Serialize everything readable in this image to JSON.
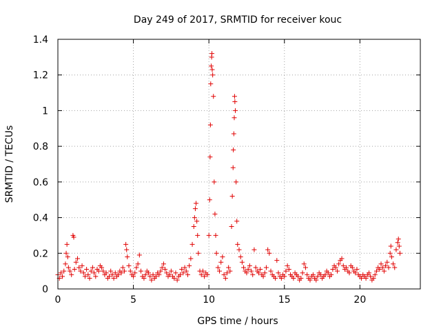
{
  "chart_data": {
    "type": "scatter",
    "title": "Day 249 of 2017, SRMTID for receiver kouc",
    "xlabel": "GPS time / hours",
    "ylabel": "SRMTID / TECUs",
    "xlim": [
      0,
      24
    ],
    "ylim": [
      0,
      1.4
    ],
    "x_ticks": [
      0,
      5,
      10,
      15,
      20
    ],
    "x_tick_labels": [
      "0",
      "5",
      "10",
      "15",
      "20"
    ],
    "y_ticks": [
      0,
      0.2,
      0.4,
      0.6,
      0.8,
      1.0,
      1.2,
      1.4
    ],
    "y_tick_labels": [
      "0",
      "0.2",
      "0.4",
      "0.6",
      "0.8",
      "1",
      "1.2",
      "1.4"
    ],
    "grid": true,
    "marker": "+",
    "color": "#e00000",
    "series": [
      {
        "name": "SRMTID",
        "points": [
          [
            0.0,
            0.08
          ],
          [
            0.1,
            0.06
          ],
          [
            0.2,
            0.09
          ],
          [
            0.3,
            0.07
          ],
          [
            0.4,
            0.1
          ],
          [
            0.5,
            0.14
          ],
          [
            0.55,
            0.2
          ],
          [
            0.6,
            0.25
          ],
          [
            0.65,
            0.18
          ],
          [
            0.7,
            0.12
          ],
          [
            0.8,
            0.1
          ],
          [
            0.9,
            0.08
          ],
          [
            1.0,
            0.3
          ],
          [
            1.05,
            0.29
          ],
          [
            1.1,
            0.11
          ],
          [
            1.2,
            0.15
          ],
          [
            1.3,
            0.17
          ],
          [
            1.4,
            0.12
          ],
          [
            1.5,
            0.1
          ],
          [
            1.6,
            0.13
          ],
          [
            1.7,
            0.09
          ],
          [
            1.8,
            0.07
          ],
          [
            1.9,
            0.11
          ],
          [
            2.0,
            0.08
          ],
          [
            2.1,
            0.06
          ],
          [
            2.2,
            0.1
          ],
          [
            2.3,
            0.12
          ],
          [
            2.4,
            0.09
          ],
          [
            2.5,
            0.07
          ],
          [
            2.6,
            0.11
          ],
          [
            2.7,
            0.1
          ],
          [
            2.8,
            0.13
          ],
          [
            2.9,
            0.12
          ],
          [
            3.0,
            0.1
          ],
          [
            3.1,
            0.08
          ],
          [
            3.2,
            0.09
          ],
          [
            3.3,
            0.06
          ],
          [
            3.4,
            0.07
          ],
          [
            3.5,
            0.1
          ],
          [
            3.6,
            0.08
          ],
          [
            3.7,
            0.06
          ],
          [
            3.8,
            0.09
          ],
          [
            3.9,
            0.07
          ],
          [
            4.0,
            0.08
          ],
          [
            4.1,
            0.1
          ],
          [
            4.2,
            0.09
          ],
          [
            4.3,
            0.12
          ],
          [
            4.4,
            0.1
          ],
          [
            4.5,
            0.25
          ],
          [
            4.55,
            0.22
          ],
          [
            4.6,
            0.18
          ],
          [
            4.7,
            0.13
          ],
          [
            4.8,
            0.1
          ],
          [
            4.9,
            0.08
          ],
          [
            5.0,
            0.07
          ],
          [
            5.1,
            0.09
          ],
          [
            5.2,
            0.12
          ],
          [
            5.3,
            0.14
          ],
          [
            5.4,
            0.19
          ],
          [
            5.5,
            0.1
          ],
          [
            5.6,
            0.07
          ],
          [
            5.7,
            0.06
          ],
          [
            5.8,
            0.08
          ],
          [
            5.9,
            0.1
          ],
          [
            6.0,
            0.09
          ],
          [
            6.1,
            0.07
          ],
          [
            6.2,
            0.05
          ],
          [
            6.3,
            0.08
          ],
          [
            6.4,
            0.06
          ],
          [
            6.5,
            0.07
          ],
          [
            6.6,
            0.09
          ],
          [
            6.7,
            0.08
          ],
          [
            6.8,
            0.1
          ],
          [
            6.9,
            0.12
          ],
          [
            7.0,
            0.14
          ],
          [
            7.1,
            0.11
          ],
          [
            7.2,
            0.09
          ],
          [
            7.3,
            0.07
          ],
          [
            7.4,
            0.08
          ],
          [
            7.5,
            0.1
          ],
          [
            7.6,
            0.07
          ],
          [
            7.7,
            0.06
          ],
          [
            7.8,
            0.09
          ],
          [
            7.9,
            0.05
          ],
          [
            8.0,
            0.07
          ],
          [
            8.1,
            0.08
          ],
          [
            8.2,
            0.11
          ],
          [
            8.3,
            0.09
          ],
          [
            8.4,
            0.12
          ],
          [
            8.5,
            0.1
          ],
          [
            8.6,
            0.08
          ],
          [
            8.7,
            0.13
          ],
          [
            8.8,
            0.17
          ],
          [
            8.9,
            0.25
          ],
          [
            9.0,
            0.35
          ],
          [
            9.05,
            0.4
          ],
          [
            9.1,
            0.45
          ],
          [
            9.15,
            0.48
          ],
          [
            9.2,
            0.38
          ],
          [
            9.25,
            0.3
          ],
          [
            9.3,
            0.2
          ],
          [
            9.4,
            0.1
          ],
          [
            9.5,
            0.08
          ],
          [
            9.6,
            0.1
          ],
          [
            9.7,
            0.07
          ],
          [
            9.8,
            0.09
          ],
          [
            9.9,
            0.08
          ],
          [
            10.0,
            0.3
          ],
          [
            10.05,
            0.5
          ],
          [
            10.08,
            0.74
          ],
          [
            10.1,
            0.92
          ],
          [
            10.12,
            1.15
          ],
          [
            10.15,
            1.25
          ],
          [
            10.18,
            1.3
          ],
          [
            10.2,
            1.32
          ],
          [
            10.22,
            1.23
          ],
          [
            10.25,
            1.2
          ],
          [
            10.3,
            1.08
          ],
          [
            10.35,
            0.6
          ],
          [
            10.4,
            0.42
          ],
          [
            10.45,
            0.3
          ],
          [
            10.5,
            0.2
          ],
          [
            10.6,
            0.12
          ],
          [
            10.7,
            0.1
          ],
          [
            10.8,
            0.15
          ],
          [
            10.9,
            0.18
          ],
          [
            11.0,
            0.08
          ],
          [
            11.1,
            0.06
          ],
          [
            11.2,
            0.09
          ],
          [
            11.3,
            0.12
          ],
          [
            11.4,
            0.1
          ],
          [
            11.5,
            0.35
          ],
          [
            11.55,
            0.52
          ],
          [
            11.6,
            0.68
          ],
          [
            11.62,
            0.78
          ],
          [
            11.65,
            0.87
          ],
          [
            11.68,
            0.96
          ],
          [
            11.7,
            1.08
          ],
          [
            11.72,
            1.05
          ],
          [
            11.75,
            1.0
          ],
          [
            11.8,
            0.6
          ],
          [
            11.85,
            0.38
          ],
          [
            11.9,
            0.25
          ],
          [
            12.0,
            0.22
          ],
          [
            12.1,
            0.18
          ],
          [
            12.2,
            0.15
          ],
          [
            12.3,
            0.12
          ],
          [
            12.4,
            0.1
          ],
          [
            12.5,
            0.09
          ],
          [
            12.6,
            0.11
          ],
          [
            12.7,
            0.13
          ],
          [
            12.8,
            0.1
          ],
          [
            12.9,
            0.08
          ],
          [
            13.0,
            0.22
          ],
          [
            13.1,
            0.12
          ],
          [
            13.2,
            0.1
          ],
          [
            13.3,
            0.09
          ],
          [
            13.4,
            0.11
          ],
          [
            13.5,
            0.08
          ],
          [
            13.6,
            0.07
          ],
          [
            13.7,
            0.09
          ],
          [
            13.8,
            0.12
          ],
          [
            13.9,
            0.22
          ],
          [
            14.0,
            0.2
          ],
          [
            14.1,
            0.1
          ],
          [
            14.2,
            0.08
          ],
          [
            14.3,
            0.07
          ],
          [
            14.4,
            0.06
          ],
          [
            14.5,
            0.16
          ],
          [
            14.6,
            0.09
          ],
          [
            14.7,
            0.07
          ],
          [
            14.8,
            0.06
          ],
          [
            14.9,
            0.08
          ],
          [
            15.0,
            0.07
          ],
          [
            15.1,
            0.1
          ],
          [
            15.2,
            0.13
          ],
          [
            15.3,
            0.11
          ],
          [
            15.4,
            0.08
          ],
          [
            15.5,
            0.07
          ],
          [
            15.6,
            0.06
          ],
          [
            15.7,
            0.09
          ],
          [
            15.8,
            0.08
          ],
          [
            15.9,
            0.07
          ],
          [
            16.0,
            0.05
          ],
          [
            16.1,
            0.06
          ],
          [
            16.2,
            0.09
          ],
          [
            16.3,
            0.14
          ],
          [
            16.4,
            0.12
          ],
          [
            16.5,
            0.08
          ],
          [
            16.6,
            0.06
          ],
          [
            16.7,
            0.05
          ],
          [
            16.8,
            0.07
          ],
          [
            16.9,
            0.08
          ],
          [
            17.0,
            0.06
          ],
          [
            17.1,
            0.05
          ],
          [
            17.2,
            0.07
          ],
          [
            17.3,
            0.09
          ],
          [
            17.4,
            0.08
          ],
          [
            17.5,
            0.06
          ],
          [
            17.6,
            0.07
          ],
          [
            17.7,
            0.08
          ],
          [
            17.8,
            0.1
          ],
          [
            17.9,
            0.09
          ],
          [
            18.0,
            0.07
          ],
          [
            18.1,
            0.08
          ],
          [
            18.2,
            0.11
          ],
          [
            18.3,
            0.13
          ],
          [
            18.4,
            0.12
          ],
          [
            18.5,
            0.1
          ],
          [
            18.6,
            0.14
          ],
          [
            18.7,
            0.16
          ],
          [
            18.8,
            0.17
          ],
          [
            18.9,
            0.13
          ],
          [
            19.0,
            0.11
          ],
          [
            19.1,
            0.12
          ],
          [
            19.2,
            0.1
          ],
          [
            19.3,
            0.09
          ],
          [
            19.4,
            0.13
          ],
          [
            19.5,
            0.12
          ],
          [
            19.6,
            0.1
          ],
          [
            19.7,
            0.09
          ],
          [
            19.8,
            0.11
          ],
          [
            19.9,
            0.08
          ],
          [
            20.0,
            0.07
          ],
          [
            20.1,
            0.06
          ],
          [
            20.2,
            0.08
          ],
          [
            20.3,
            0.07
          ],
          [
            20.4,
            0.06
          ],
          [
            20.5,
            0.08
          ],
          [
            20.6,
            0.09
          ],
          [
            20.7,
            0.07
          ],
          [
            20.8,
            0.05
          ],
          [
            20.9,
            0.06
          ],
          [
            21.0,
            0.08
          ],
          [
            21.1,
            0.1
          ],
          [
            21.2,
            0.12
          ],
          [
            21.3,
            0.11
          ],
          [
            21.4,
            0.14
          ],
          [
            21.5,
            0.12
          ],
          [
            21.6,
            0.1
          ],
          [
            21.7,
            0.13
          ],
          [
            21.8,
            0.15
          ],
          [
            21.9,
            0.12
          ],
          [
            22.0,
            0.2
          ],
          [
            22.05,
            0.24
          ],
          [
            22.1,
            0.18
          ],
          [
            22.2,
            0.14
          ],
          [
            22.3,
            0.12
          ],
          [
            22.4,
            0.22
          ],
          [
            22.5,
            0.26
          ],
          [
            22.55,
            0.28
          ],
          [
            22.6,
            0.24
          ],
          [
            22.65,
            0.2
          ]
        ]
      }
    ]
  }
}
